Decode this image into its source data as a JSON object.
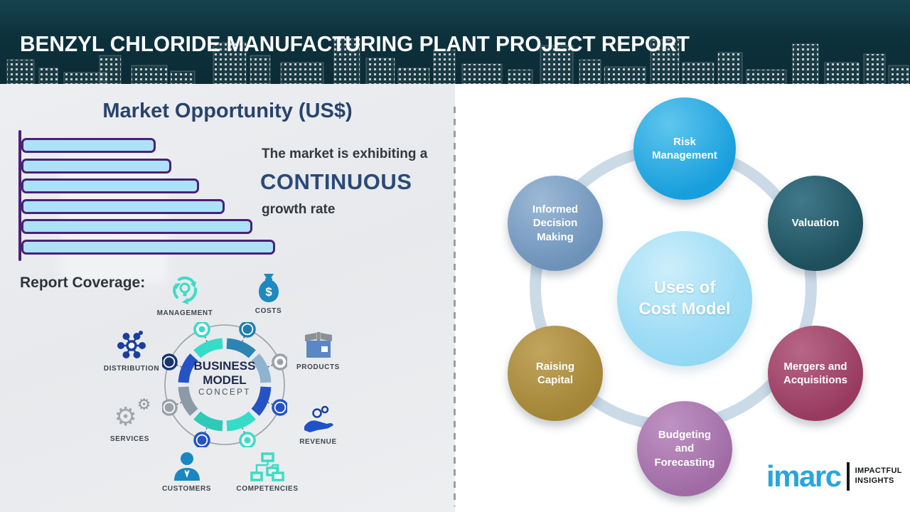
{
  "header": {
    "title": "BENZYL CHLORIDE MANUFACTURING PLANT PROJECT REPORT"
  },
  "left_panel": {
    "chart_title": "Market Opportunity (US$)",
    "growth_text": {
      "line1": "The market is exhibiting a",
      "emphasis": "CONTINUOUS",
      "line2": "growth rate"
    },
    "report_coverage_label": "Report Coverage:",
    "business_model": {
      "line1": "BUSINESS",
      "line2": "MODEL",
      "line3": "CONCEPT"
    },
    "coverage_items": [
      {
        "label": "MANAGEMENT"
      },
      {
        "label": "COSTS"
      },
      {
        "label": "DISTRIBUTION"
      },
      {
        "label": "PRODUCTS"
      },
      {
        "label": "SERVICES"
      },
      {
        "label": "REVENUE"
      },
      {
        "label": "CUSTOMERS"
      },
      {
        "label": "COMPETENCIES"
      }
    ]
  },
  "chart_data": {
    "type": "bar",
    "orientation": "horizontal",
    "title": "Market Opportunity (US$)",
    "categories": [
      "",
      "",
      "",
      "",
      "",
      ""
    ],
    "values_relative_pct": [
      53,
      59,
      70,
      80,
      91,
      100
    ],
    "bar_fill": "#ace2f8",
    "bar_border": "#4a2178",
    "note": "six unlabeled bars increasing steadily to depict continuous growth"
  },
  "right_panel": {
    "center_label": "Uses of\nCost Model",
    "center_color": "#9edcf5",
    "ring_color": "#cbdae7",
    "bubbles": [
      {
        "label": "Risk\nManagement",
        "color": "#179edc",
        "color_light": "#5fc6ee"
      },
      {
        "label": "Valuation",
        "color": "#1d4f5c",
        "color_light": "#41798a"
      },
      {
        "label": "Informed\nDecision\nMaking",
        "color": "#6d92b9",
        "color_light": "#9cb9d6"
      },
      {
        "label": "Raising\nCapital",
        "color": "#a28536",
        "color_light": "#c2a55e"
      },
      {
        "label": "Mergers and\nAcquisitions",
        "color": "#983a60",
        "color_light": "#b66787"
      },
      {
        "label": "Budgeting\nand\nForecasting",
        "color": "#a06ba5",
        "color_light": "#bf93c3"
      }
    ]
  },
  "logo": {
    "brand": "imarc",
    "tagline_line1": "IMPACTFUL",
    "tagline_line2": "INSIGHTS",
    "brand_color": "#29a5dc"
  }
}
